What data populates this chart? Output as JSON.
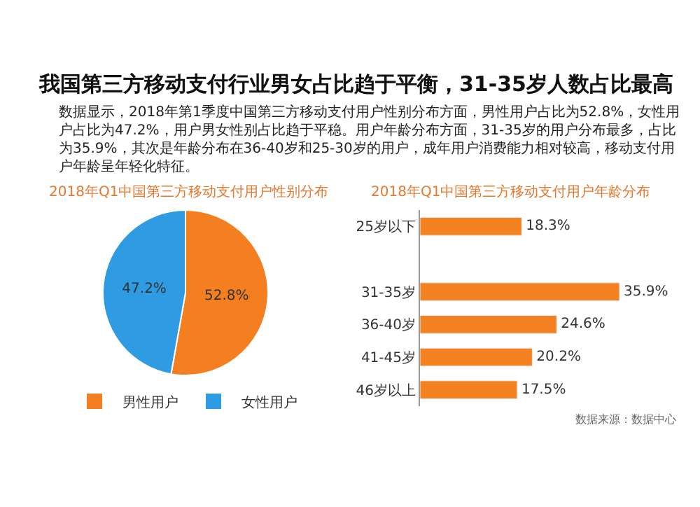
{
  "chart_data": [
    {
      "type": "other",
      "title": "我国第三方移动支付行业男女占比趋于平衡，31-35岁人数占比最高",
      "subtitle": "数据显示，2018年第1季度中国第三方移动支付用户性别分布方面，男性用户占比为52.8%，女性用户占比为47.2%，用户男女性别占比趋于平稳。用户年龄分布方面，31-35岁的用户分布最多，占比为35.9%，其次是年龄分布在36-40岁和25-30岁的用户，成年用户消费能力相对较高，移动支付用户年龄呈年轻化特征。"
    },
    {
      "type": "pie",
      "title": "2018年Q1中国第三方移动支付用户性别分布",
      "categories": [
        "男性用户",
        "女性用户"
      ],
      "values": [
        52.8,
        47.2
      ],
      "colors": [
        "#f47f20",
        "#2e9be3"
      ],
      "value_labels": [
        "52.8%",
        "47.2%"
      ],
      "legend": "bottom"
    },
    {
      "type": "bar",
      "orientation": "horizontal",
      "title": "2018年Q1中国第三方移动支付用户年龄分布",
      "categories": [
        "25岁以下",
        null,
        "31-35岁",
        "36-40岁",
        "41-45岁",
        "46岁以上"
      ],
      "values": [
        18.3,
        null,
        35.9,
        24.6,
        20.2,
        17.5
      ],
      "color": "#f58220",
      "value_labels": [
        "18.3%",
        null,
        "35.9%",
        "24.6%",
        "20.2%",
        "17.5%"
      ],
      "annotations": [
        "数据来源：数据中心"
      ]
    }
  ]
}
